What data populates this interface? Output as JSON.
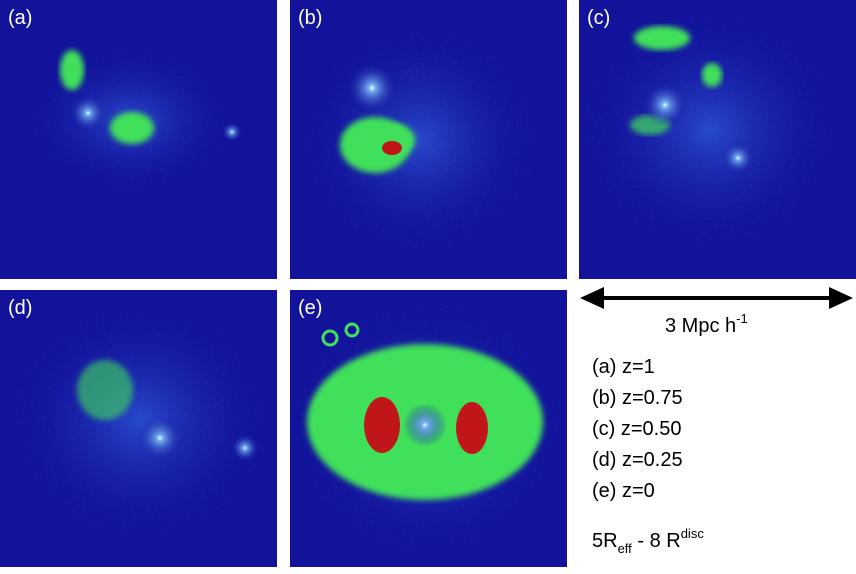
{
  "panels": [
    {
      "label": "(a)"
    },
    {
      "label": "(b)"
    },
    {
      "label": "(c)"
    },
    {
      "label": "(d)"
    },
    {
      "label": "(e)"
    }
  ],
  "scale_bar": {
    "text": "3 Mpc h",
    "superscript": "-1"
  },
  "legend": {
    "items": [
      "(a) z=1",
      "(b) z=0.75",
      "(c) z=0.50",
      "(d) z=0.25",
      "(e) z=0"
    ]
  },
  "footnote": {
    "part1": "5R",
    "sub": "eff",
    "part2": " - 8 R",
    "sup": "disc"
  }
}
